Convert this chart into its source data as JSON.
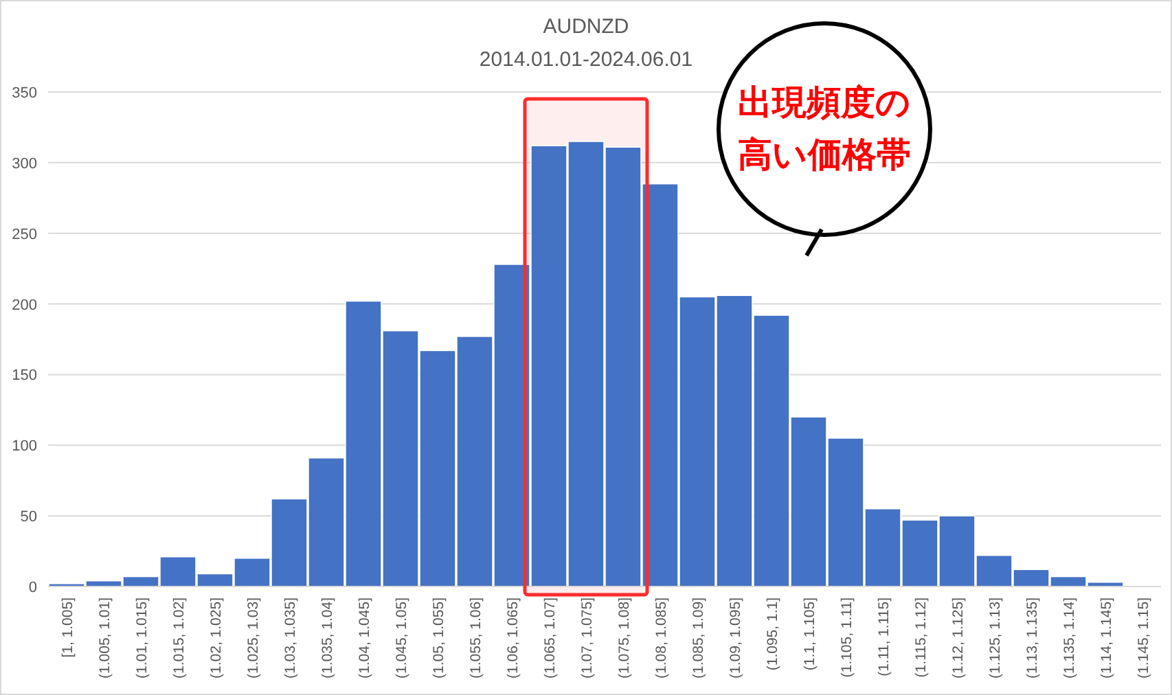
{
  "chart_data": {
    "type": "bar",
    "title": "AUDNZD",
    "subtitle": "2014.01.01-2024.06.01",
    "categories": [
      "[1, 1.005]",
      "(1.005, 1.01]",
      "(1.01, 1.015]",
      "(1.015, 1.02]",
      "(1.02, 1.025]",
      "(1.025, 1.03]",
      "(1.03, 1.035]",
      "(1.035, 1.04]",
      "(1.04, 1.045]",
      "(1.045, 1.05]",
      "(1.05, 1.055]",
      "(1.055, 1.06]",
      "(1.06, 1.065]",
      "(1.065, 1.07]",
      "(1.07, 1.075]",
      "(1.075, 1.08]",
      "(1.08, 1.085]",
      "(1.085, 1.09]",
      "(1.09, 1.095]",
      "(1.095, 1.1]",
      "(1.1, 1.105]",
      "(1.105, 1.11]",
      "(1.11, 1.115]",
      "(1.115, 1.12]",
      "(1.12, 1.125]",
      "(1.125, 1.13]",
      "(1.13, 1.135]",
      "(1.135, 1.14]",
      "(1.14, 1.145]",
      "(1.145, 1.15]"
    ],
    "values": [
      2,
      4,
      7,
      21,
      9,
      20,
      62,
      91,
      202,
      181,
      167,
      177,
      228,
      312,
      315,
      311,
      285,
      205,
      206,
      192,
      120,
      105,
      55,
      47,
      50,
      22,
      12,
      7,
      3,
      0
    ],
    "color": "#4472c4",
    "ylim": [
      0,
      350
    ],
    "yticks": [
      0,
      50,
      100,
      150,
      200,
      250,
      300,
      350
    ],
    "grid": "y",
    "bands": [
      {
        "axis": "x",
        "from": "(1.065, 1.07]",
        "to": "(1.075, 1.08]",
        "color": "#ff2b2b"
      }
    ],
    "annotations": [
      "出現頻度の高い価格帯"
    ]
  }
}
